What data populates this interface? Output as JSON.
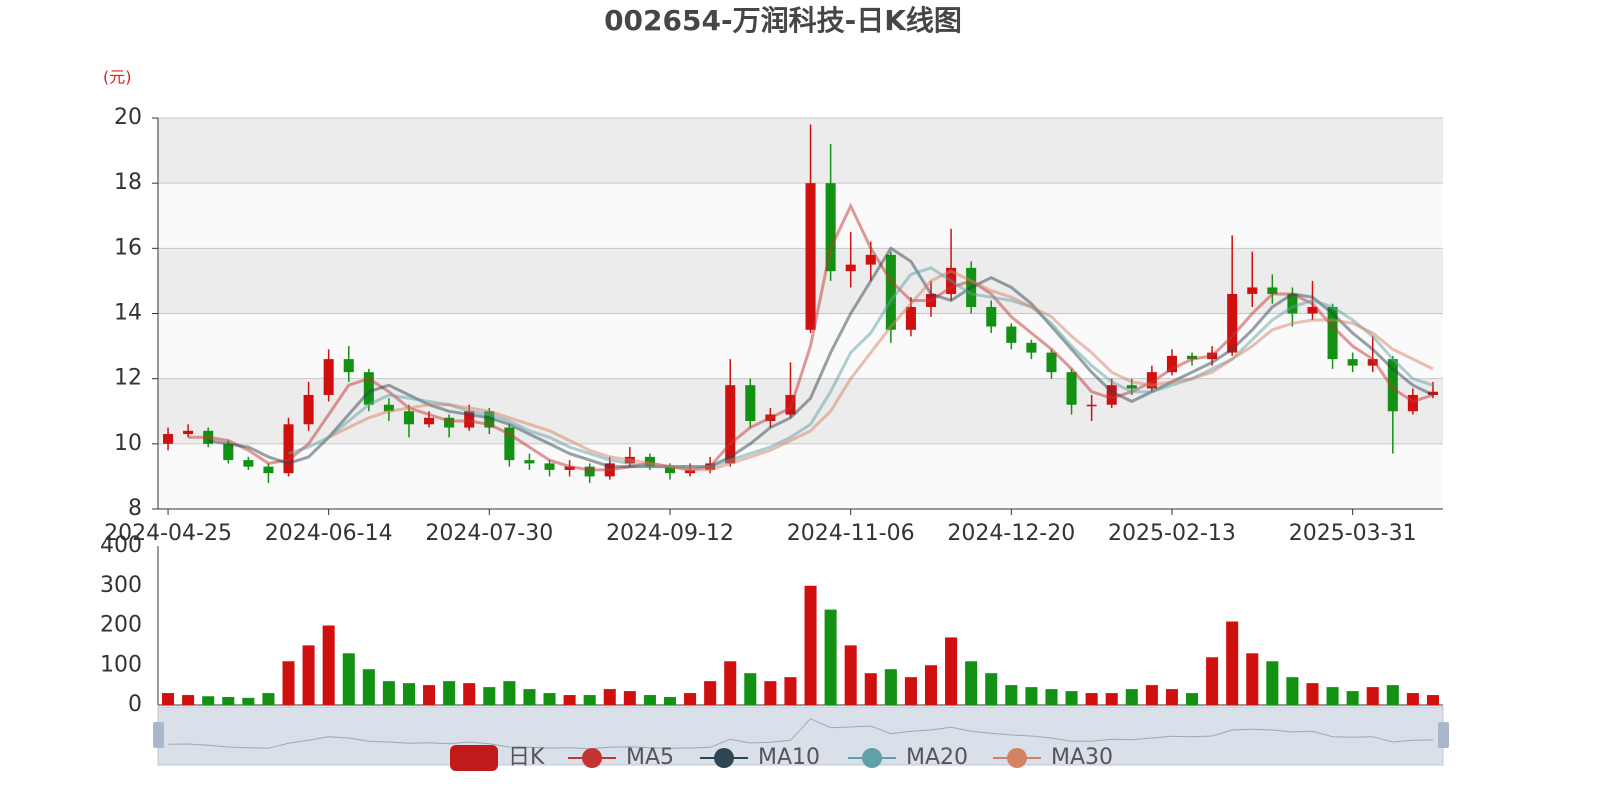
{
  "chart_data": [
    {
      "type": "candlestick",
      "title": "002654-万润科技-日K线图",
      "unit": "(元)",
      "categories": [
        "2024-04-25",
        null,
        null,
        null,
        null,
        null,
        null,
        null,
        "2024-06-14",
        null,
        null,
        null,
        null,
        null,
        null,
        null,
        "2024-07-30",
        null,
        null,
        null,
        null,
        null,
        null,
        null,
        null,
        "2024-09-12",
        null,
        null,
        null,
        null,
        null,
        null,
        null,
        null,
        "2024-11-06",
        null,
        null,
        null,
        null,
        null,
        null,
        null,
        "2024-12-20",
        null,
        null,
        null,
        null,
        null,
        null,
        null,
        "2025-02-13",
        null,
        null,
        null,
        null,
        null,
        null,
        null,
        null,
        "2025-03-31",
        null,
        null,
        null,
        null
      ],
      "ylim": [
        8,
        20
      ],
      "yticks": [
        8,
        10,
        12,
        14,
        16,
        18,
        20
      ],
      "grid": true,
      "split_area": true,
      "up_color": "#d00f0f",
      "down_color": "#129112",
      "series": [
        {
          "name": "日K",
          "color": "#c11a1a",
          "values": [
            [
              10.0,
              10.3,
              9.8,
              10.5
            ],
            [
              10.3,
              10.4,
              10.2,
              10.6
            ],
            [
              10.4,
              10.0,
              9.9,
              10.5
            ],
            [
              10.0,
              9.5,
              9.4,
              10.1
            ],
            [
              9.5,
              9.3,
              9.2,
              9.6
            ],
            [
              9.3,
              9.1,
              8.8,
              9.4
            ],
            [
              9.1,
              10.6,
              9.0,
              10.8
            ],
            [
              10.6,
              11.5,
              10.4,
              11.9
            ],
            [
              11.5,
              12.6,
              11.3,
              12.9
            ],
            [
              12.6,
              12.2,
              11.9,
              13.0
            ],
            [
              12.2,
              11.2,
              11.0,
              12.3
            ],
            [
              11.2,
              11.0,
              10.7,
              11.4
            ],
            [
              11.0,
              10.6,
              10.2,
              11.2
            ],
            [
              10.6,
              10.8,
              10.5,
              11.0
            ],
            [
              10.8,
              10.5,
              10.2,
              10.9
            ],
            [
              10.5,
              11.0,
              10.4,
              11.2
            ],
            [
              11.0,
              10.5,
              10.3,
              11.1
            ],
            [
              10.5,
              9.5,
              9.3,
              10.6
            ],
            [
              9.5,
              9.4,
              9.2,
              9.7
            ],
            [
              9.4,
              9.2,
              9.0,
              9.5
            ],
            [
              9.2,
              9.3,
              9.0,
              9.5
            ],
            [
              9.3,
              9.0,
              8.8,
              9.4
            ],
            [
              9.0,
              9.4,
              8.9,
              9.6
            ],
            [
              9.4,
              9.6,
              9.3,
              9.9
            ],
            [
              9.6,
              9.3,
              9.2,
              9.7
            ],
            [
              9.3,
              9.1,
              8.9,
              9.4
            ],
            [
              9.1,
              9.2,
              9.0,
              9.4
            ],
            [
              9.2,
              9.4,
              9.1,
              9.6
            ],
            [
              9.4,
              11.8,
              9.3,
              12.6
            ],
            [
              11.8,
              10.7,
              10.5,
              12.0
            ],
            [
              10.7,
              10.9,
              10.5,
              11.1
            ],
            [
              10.9,
              11.5,
              10.8,
              12.5
            ],
            [
              13.5,
              18.0,
              13.4,
              19.8
            ],
            [
              18.0,
              15.3,
              15.0,
              19.2
            ],
            [
              15.3,
              15.5,
              14.8,
              16.5
            ],
            [
              15.5,
              15.8,
              15.0,
              16.2
            ],
            [
              15.8,
              13.5,
              13.1,
              15.9
            ],
            [
              13.5,
              14.2,
              13.3,
              14.5
            ],
            [
              14.2,
              14.6,
              13.9,
              15.0
            ],
            [
              14.6,
              15.4,
              14.4,
              16.6
            ],
            [
              15.4,
              14.2,
              14.0,
              15.6
            ],
            [
              14.2,
              13.6,
              13.4,
              14.4
            ],
            [
              13.6,
              13.1,
              12.9,
              13.7
            ],
            [
              13.1,
              12.8,
              12.6,
              13.2
            ],
            [
              12.8,
              12.2,
              12.0,
              12.9
            ],
            [
              12.2,
              11.2,
              10.9,
              12.3
            ],
            [
              11.2,
              11.2,
              10.7,
              11.5
            ],
            [
              11.2,
              11.8,
              11.1,
              12.0
            ],
            [
              11.8,
              11.7,
              11.5,
              12.0
            ],
            [
              11.7,
              12.2,
              11.6,
              12.4
            ],
            [
              12.2,
              12.7,
              12.1,
              12.9
            ],
            [
              12.7,
              12.6,
              12.4,
              12.8
            ],
            [
              12.6,
              12.8,
              12.4,
              13.0
            ],
            [
              12.8,
              14.6,
              12.7,
              16.4
            ],
            [
              14.6,
              14.8,
              14.2,
              15.9
            ],
            [
              14.8,
              14.6,
              14.3,
              15.2
            ],
            [
              14.6,
              14.0,
              13.6,
              14.8
            ],
            [
              14.0,
              14.2,
              13.8,
              15.0
            ],
            [
              14.2,
              12.6,
              12.3,
              14.3
            ],
            [
              12.6,
              12.4,
              12.2,
              12.8
            ],
            [
              12.4,
              12.6,
              12.2,
              13.3
            ],
            [
              12.6,
              11.0,
              9.7,
              12.7
            ],
            [
              11.0,
              11.5,
              10.9,
              11.7
            ],
            [
              11.5,
              11.6,
              11.4,
              11.9
            ]
          ]
        },
        {
          "name": "MA5",
          "color": "#c23531",
          "values": [
            null,
            10.2,
            10.2,
            10.1,
            9.8,
            9.4,
            9.5,
            10.0,
            10.9,
            11.8,
            12.0,
            11.6,
            11.1,
            10.9,
            10.7,
            10.7,
            10.6,
            10.3,
            9.9,
            9.5,
            9.3,
            9.2,
            9.2,
            9.3,
            9.4,
            9.3,
            9.2,
            9.3,
            10.0,
            10.5,
            10.8,
            11.1,
            13.0,
            16.0,
            17.3,
            16.0,
            15.0,
            14.4,
            14.4,
            14.8,
            15.0,
            14.6,
            13.9,
            13.4,
            12.9,
            12.3,
            11.6,
            11.4,
            11.6,
            11.9,
            12.3,
            12.6,
            12.7,
            13.3,
            14.0,
            14.6,
            14.6,
            14.3,
            13.6,
            13.0,
            12.6,
            11.7,
            11.3,
            11.5
          ]
        },
        {
          "name": "MA10",
          "color": "#2f4554",
          "values": [
            null,
            null,
            10.1,
            10.0,
            9.9,
            9.6,
            9.4,
            9.6,
            10.2,
            10.9,
            11.6,
            11.8,
            11.5,
            11.2,
            11.0,
            10.9,
            10.8,
            10.6,
            10.3,
            10.0,
            9.7,
            9.5,
            9.3,
            9.3,
            9.3,
            9.3,
            9.3,
            9.3,
            9.6,
            10.0,
            10.5,
            10.8,
            11.4,
            12.8,
            14.0,
            15.0,
            16.0,
            15.6,
            14.6,
            14.4,
            14.8,
            15.1,
            14.8,
            14.3,
            13.6,
            12.9,
            12.2,
            11.6,
            11.3,
            11.6,
            11.9,
            12.2,
            12.5,
            12.9,
            13.5,
            14.2,
            14.6,
            14.5,
            14.0,
            13.4,
            12.9,
            12.3,
            11.8,
            11.5
          ]
        },
        {
          "name": "MA20",
          "color": "#61a0a8",
          "values": [
            null,
            null,
            null,
            null,
            null,
            null,
            9.7,
            9.9,
            10.2,
            10.7,
            11.2,
            11.5,
            11.4,
            11.3,
            11.2,
            11.0,
            10.9,
            10.7,
            10.4,
            10.2,
            9.9,
            9.7,
            9.5,
            9.4,
            9.3,
            9.3,
            9.3,
            9.3,
            9.5,
            9.7,
            9.9,
            10.2,
            10.6,
            11.6,
            12.8,
            13.4,
            14.4,
            15.2,
            15.4,
            15.0,
            14.6,
            14.5,
            14.4,
            14.2,
            13.7,
            13.0,
            12.4,
            11.9,
            11.6,
            11.6,
            11.8,
            12.0,
            12.3,
            12.6,
            13.2,
            13.8,
            14.2,
            14.4,
            14.2,
            13.8,
            13.3,
            12.6,
            12.0,
            11.8
          ]
        },
        {
          "name": "MA30",
          "color": "#d48265",
          "values": [
            null,
            null,
            null,
            null,
            null,
            null,
            null,
            null,
            10.2,
            10.5,
            10.8,
            11.0,
            11.1,
            11.2,
            11.2,
            11.1,
            11.0,
            10.8,
            10.6,
            10.4,
            10.1,
            9.8,
            9.6,
            9.5,
            9.4,
            9.3,
            9.2,
            9.2,
            9.4,
            9.6,
            9.8,
            10.1,
            10.4,
            11.0,
            12.0,
            12.8,
            13.6,
            14.3,
            15.0,
            15.3,
            15.0,
            14.7,
            14.5,
            14.2,
            13.9,
            13.3,
            12.8,
            12.2,
            11.9,
            11.8,
            11.9,
            12.0,
            12.2,
            12.6,
            13.0,
            13.5,
            13.7,
            13.8,
            13.8,
            13.7,
            13.4,
            12.9,
            12.6,
            12.3
          ]
        }
      ]
    },
    {
      "type": "bar",
      "ylim": [
        0,
        400
      ],
      "yticks": [
        0,
        100,
        200,
        300,
        400
      ],
      "values": [
        30,
        25,
        22,
        20,
        18,
        30,
        110,
        150,
        200,
        130,
        90,
        60,
        55,
        50,
        60,
        55,
        45,
        60,
        40,
        30,
        25,
        25,
        40,
        35,
        25,
        20,
        30,
        60,
        110,
        80,
        60,
        70,
        300,
        240,
        150,
        80,
        90,
        70,
        100,
        170,
        110,
        80,
        50,
        45,
        40,
        35,
        30,
        30,
        40,
        50,
        40,
        30,
        120,
        210,
        130,
        110,
        70,
        55,
        45,
        35,
        45,
        50,
        30,
        25
      ]
    }
  ]
}
